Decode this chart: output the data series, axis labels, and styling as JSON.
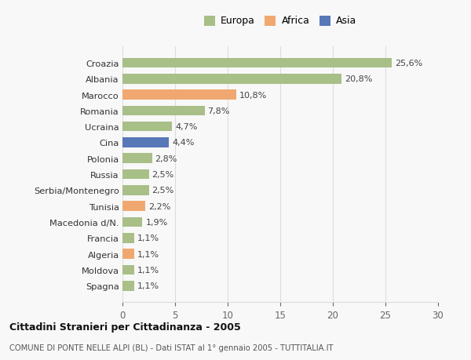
{
  "categories": [
    "Croazia",
    "Albania",
    "Marocco",
    "Romania",
    "Ucraina",
    "Cina",
    "Polonia",
    "Russia",
    "Serbia/Montenegro",
    "Tunisia",
    "Macedonia d/N.",
    "Francia",
    "Algeria",
    "Moldova",
    "Spagna"
  ],
  "values": [
    25.6,
    20.8,
    10.8,
    7.8,
    4.7,
    4.4,
    2.8,
    2.5,
    2.5,
    2.2,
    1.9,
    1.1,
    1.1,
    1.1,
    1.1
  ],
  "labels": [
    "25,6%",
    "20,8%",
    "10,8%",
    "7,8%",
    "4,7%",
    "4,4%",
    "2,8%",
    "2,5%",
    "2,5%",
    "2,2%",
    "1,9%",
    "1,1%",
    "1,1%",
    "1,1%",
    "1,1%"
  ],
  "continents": [
    "Europa",
    "Europa",
    "Africa",
    "Europa",
    "Europa",
    "Asia",
    "Europa",
    "Europa",
    "Europa",
    "Africa",
    "Europa",
    "Europa",
    "Africa",
    "Europa",
    "Europa"
  ],
  "colors": {
    "Europa": "#a8bf88",
    "Africa": "#f0a870",
    "Asia": "#5878b8"
  },
  "legend_labels": [
    "Europa",
    "Africa",
    "Asia"
  ],
  "legend_colors": [
    "#a8bf88",
    "#f0a870",
    "#5878b8"
  ],
  "xlim": [
    0,
    30
  ],
  "xticks": [
    0,
    5,
    10,
    15,
    20,
    25,
    30
  ],
  "title": "Cittadini Stranieri per Cittadinanza - 2005",
  "subtitle": "COMUNE DI PONTE NELLE ALPI (BL) - Dati ISTAT al 1° gennaio 2005 - TUTTITALIA.IT",
  "background_color": "#f8f8f8",
  "grid_color": "#dddddd"
}
